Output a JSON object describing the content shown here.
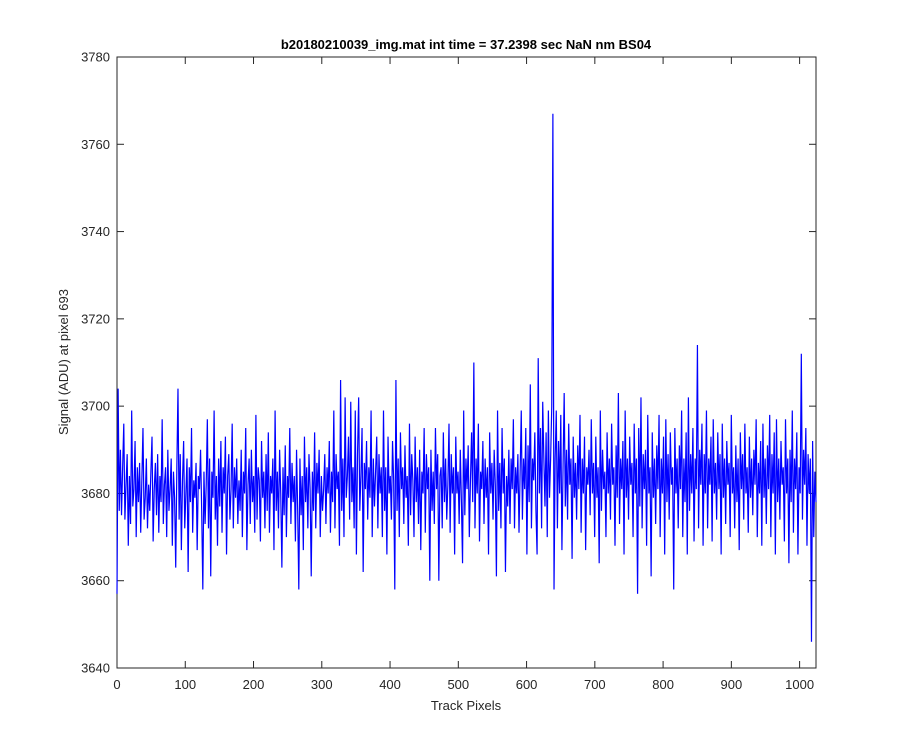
{
  "chart_data": {
    "type": "line",
    "title": "b20180210039_img.mat int time = 37.2398 sec  NaN nm BS04",
    "xlabel": "Track Pixels",
    "ylabel": "Signal (ADU) at pixel 693",
    "xlim": [
      0,
      1024
    ],
    "ylim": [
      3640,
      3780
    ],
    "xticks": [
      0,
      100,
      200,
      300,
      400,
      500,
      600,
      700,
      800,
      900,
      1000
    ],
    "yticks": [
      3640,
      3660,
      3680,
      3700,
      3720,
      3740,
      3760,
      3780
    ],
    "grid": false,
    "line_color": "#0000ff",
    "series": [
      {
        "values": [
          3657,
          3704,
          3676,
          3690,
          3675,
          3686,
          3696,
          3674,
          3682,
          3689,
          3668,
          3684,
          3673,
          3699,
          3677,
          3681,
          3692,
          3670,
          3686,
          3678,
          3687,
          3671,
          3683,
          3695,
          3674,
          3679,
          3688,
          3672,
          3682,
          3676,
          3685,
          3693,
          3669,
          3681,
          3687,
          3675,
          3689,
          3671,
          3684,
          3678,
          3697,
          3673,
          3682,
          3686,
          3670,
          3690,
          3676,
          3681,
          3688,
          3668,
          3685,
          3679,
          3663,
          3686,
          3704,
          3674,
          3689,
          3667,
          3683,
          3692,
          3672,
          3680,
          3688,
          3662,
          3686,
          3678,
          3695,
          3671,
          3683,
          3679,
          3687,
          3667,
          3684,
          3681,
          3690,
          3676,
          3658,
          3685,
          3673,
          3682,
          3697,
          3672,
          3688,
          3661,
          3685,
          3679,
          3699,
          3674,
          3684,
          3668,
          3688,
          3677,
          3692,
          3671,
          3686,
          3680,
          3693,
          3666,
          3684,
          3689,
          3674,
          3681,
          3696,
          3672,
          3686,
          3679,
          3688,
          3673,
          3683,
          3676,
          3690,
          3670,
          3685,
          3680,
          3695,
          3667,
          3682,
          3688,
          3673,
          3690,
          3678,
          3684,
          3671,
          3698,
          3674,
          3686,
          3683,
          3669,
          3692,
          3679,
          3685,
          3672,
          3689,
          3676,
          3694,
          3671,
          3684,
          3680,
          3688,
          3667,
          3699,
          3676,
          3685,
          3672,
          3690,
          3680,
          3663,
          3686,
          3675,
          3691,
          3670,
          3684,
          3679,
          3695,
          3673,
          3687,
          3678,
          3684,
          3669,
          3690,
          3676,
          3658,
          3688,
          3675,
          3684,
          3667,
          3693,
          3678,
          3686,
          3672,
          3689,
          3681,
          3661,
          3685,
          3676,
          3694,
          3672,
          3687,
          3680,
          3690,
          3670,
          3684,
          3676,
          3681,
          3689,
          3673,
          3686,
          3680,
          3692,
          3671,
          3685,
          3678,
          3699,
          3672,
          3689,
          3681,
          3685,
          3668,
          3706,
          3676,
          3688,
          3670,
          3702,
          3679,
          3684,
          3693,
          3674,
          3701,
          3678,
          3686,
          3672,
          3699,
          3666,
          3689,
          3702,
          3676,
          3684,
          3695,
          3662,
          3687,
          3681,
          3692,
          3674,
          3686,
          3679,
          3699,
          3670,
          3688,
          3677,
          3685,
          3693,
          3672,
          3689,
          3680,
          3686,
          3670,
          3699,
          3676,
          3686,
          3666,
          3693,
          3680,
          3684,
          3674,
          3692,
          3683,
          3658,
          3706,
          3676,
          3688,
          3670,
          3694,
          3681,
          3686,
          3673,
          3691,
          3679,
          3684,
          3668,
          3696,
          3675,
          3689,
          3683,
          3670,
          3693,
          3678,
          3686,
          3673,
          3690,
          3667,
          3685,
          3680,
          3695,
          3671,
          3689,
          3681,
          3686,
          3660,
          3690,
          3676,
          3685,
          3673,
          3695,
          3681,
          3689,
          3660,
          3684,
          3686,
          3672,
          3694,
          3678,
          3688,
          3674,
          3682,
          3696,
          3671,
          3689,
          3680,
          3686,
          3666,
          3693,
          3680,
          3685,
          3673,
          3690,
          3678,
          3664,
          3699,
          3675,
          3688,
          3681,
          3691,
          3670,
          3683,
          3694,
          3678,
          3710,
          3672,
          3688,
          3680,
          3696,
          3669,
          3685,
          3681,
          3692,
          3673,
          3688,
          3679,
          3686,
          3666,
          3694,
          3680,
          3687,
          3674,
          3690,
          3682,
          3661,
          3699,
          3676,
          3687,
          3672,
          3695,
          3680,
          3688,
          3662,
          3684,
          3677,
          3690,
          3673,
          3688,
          3681,
          3697,
          3672,
          3686,
          3680,
          3689,
          3671,
          3685,
          3699,
          3674,
          3688,
          3681,
          3695,
          3666,
          3691,
          3678,
          3705,
          3672,
          3688,
          3683,
          3694,
          3676,
          3666,
          3711,
          3680,
          3695,
          3672,
          3701,
          3688,
          3677,
          3694,
          3670,
          3699,
          3679,
          3688,
          3700,
          3767,
          3658,
          3688,
          3699,
          3672,
          3692,
          3680,
          3698,
          3667,
          3686,
          3703,
          3677,
          3690,
          3674,
          3696,
          3682,
          3688,
          3665,
          3693,
          3679,
          3687,
          3674,
          3691,
          3681,
          3698,
          3671,
          3688,
          3680,
          3693,
          3667,
          3686,
          3682,
          3690,
          3675,
          3697,
          3680,
          3687,
          3670,
          3693,
          3679,
          3686,
          3664,
          3699,
          3676,
          3690,
          3681,
          3685,
          3670,
          3694,
          3680,
          3688,
          3674,
          3696,
          3682,
          3686,
          3668,
          3691,
          3679,
          3703,
          3673,
          3688,
          3681,
          3692,
          3666,
          3699,
          3679,
          3688,
          3674,
          3693,
          3682,
          3687,
          3670,
          3696,
          3680,
          3688,
          3657,
          3695,
          3677,
          3702,
          3672,
          3689,
          3681,
          3690,
          3668,
          3698,
          3680,
          3686,
          3661,
          3694,
          3679,
          3688,
          3673,
          3691,
          3681,
          3698,
          3670,
          3688,
          3680,
          3693,
          3666,
          3697,
          3678,
          3689,
          3674,
          3694,
          3682,
          3686,
          3658,
          3695,
          3680,
          3688,
          3672,
          3691,
          3681,
          3699,
          3670,
          3688,
          3678,
          3694,
          3666,
          3702,
          3676,
          3689,
          3680,
          3695,
          3669,
          3688,
          3681,
          3714,
          3672,
          3690,
          3682,
          3696,
          3668,
          3689,
          3680,
          3699,
          3672,
          3688,
          3682,
          3693,
          3669,
          3697,
          3680,
          3687,
          3674,
          3694,
          3681,
          3689,
          3666,
          3696,
          3679,
          3688,
          3673,
          3692,
          3682,
          3687,
          3670,
          3698,
          3680,
          3686,
          3672,
          3691,
          3678,
          3688,
          3667,
          3694,
          3681,
          3689,
          3674,
          3696,
          3680,
          3686,
          3671,
          3693,
          3679,
          3688,
          3675,
          3690,
          3682,
          3697,
          3670,
          3687,
          3680,
          3692,
          3668,
          3696,
          3679,
          3688,
          3673,
          3691,
          3681,
          3698,
          3670,
          3689,
          3680,
          3694,
          3666,
          3697,
          3678,
          3688,
          3674,
          3692,
          3682,
          3686,
          3669,
          3697,
          3680,
          3688,
          3664,
          3690,
          3678,
          3699,
          3671,
          3688,
          3681,
          3694,
          3666,
          3686,
          3680,
          3712,
          3674,
          3690,
          3682,
          3695,
          3668,
          3689,
          3680,
          3688,
          3646,
          3692,
          3670,
          3685,
          3678
        ]
      }
    ]
  }
}
